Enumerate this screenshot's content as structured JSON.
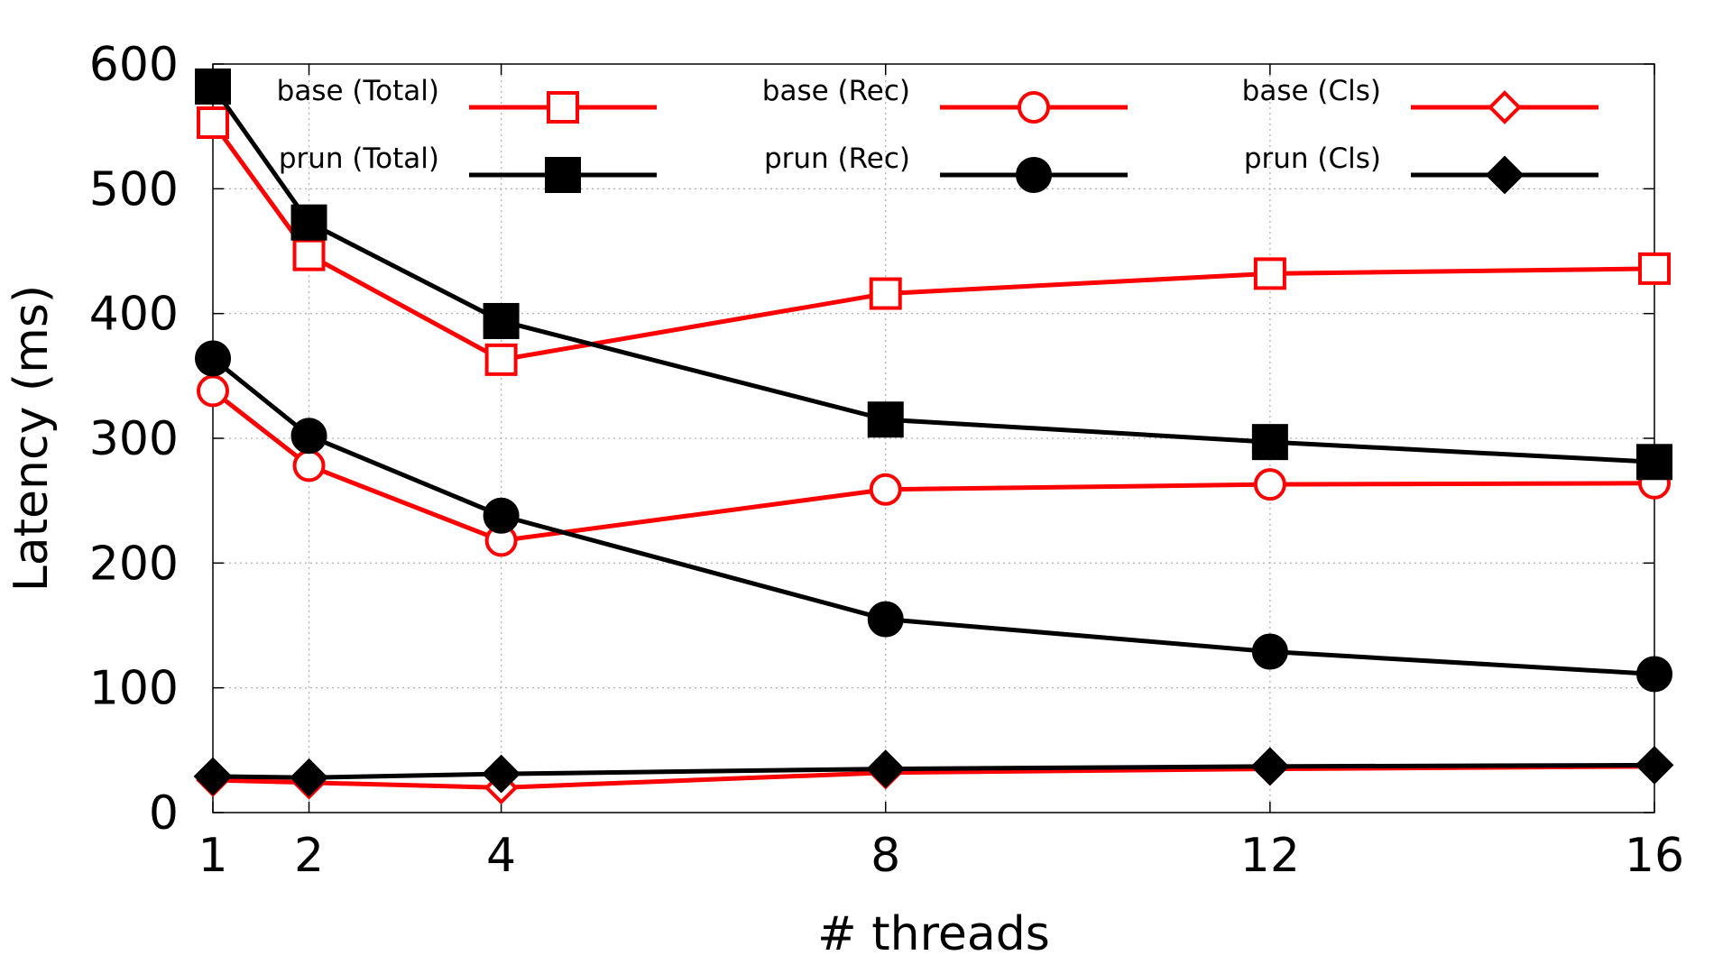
{
  "chart_data": {
    "type": "line",
    "xlabel": "# threads",
    "ylabel": "Latency (ms)",
    "x": [
      1,
      2,
      4,
      8,
      12,
      16
    ],
    "xlim": [
      1,
      16
    ],
    "ylim": [
      0,
      600
    ],
    "xticks": [
      1,
      2,
      4,
      8,
      12,
      16
    ],
    "yticks": [
      0,
      100,
      200,
      300,
      400,
      500,
      600
    ],
    "grid": true,
    "legend_position": "top",
    "series": [
      {
        "name": "base (Total)",
        "color": "#ff0000",
        "marker": "square-open",
        "values": [
          553,
          447,
          363,
          416,
          432,
          436
        ]
      },
      {
        "name": "base (Rec)",
        "color": "#ff0000",
        "marker": "circle-open",
        "values": [
          338,
          278,
          218,
          259,
          263,
          264
        ]
      },
      {
        "name": "base (Cls)",
        "color": "#ff0000",
        "marker": "diamond-open",
        "values": [
          26,
          24,
          20,
          32,
          35,
          37
        ]
      },
      {
        "name": "prun (Total)",
        "color": "#000000",
        "marker": "square-filled",
        "values": [
          582,
          473,
          394,
          315,
          297,
          281
        ]
      },
      {
        "name": "prun (Rec)",
        "color": "#000000",
        "marker": "circle-filled",
        "values": [
          364,
          302,
          238,
          155,
          129,
          111
        ]
      },
      {
        "name": "prun (Cls)",
        "color": "#000000",
        "marker": "diamond-filled",
        "values": [
          29,
          28,
          31,
          35,
          37,
          38
        ]
      }
    ]
  }
}
